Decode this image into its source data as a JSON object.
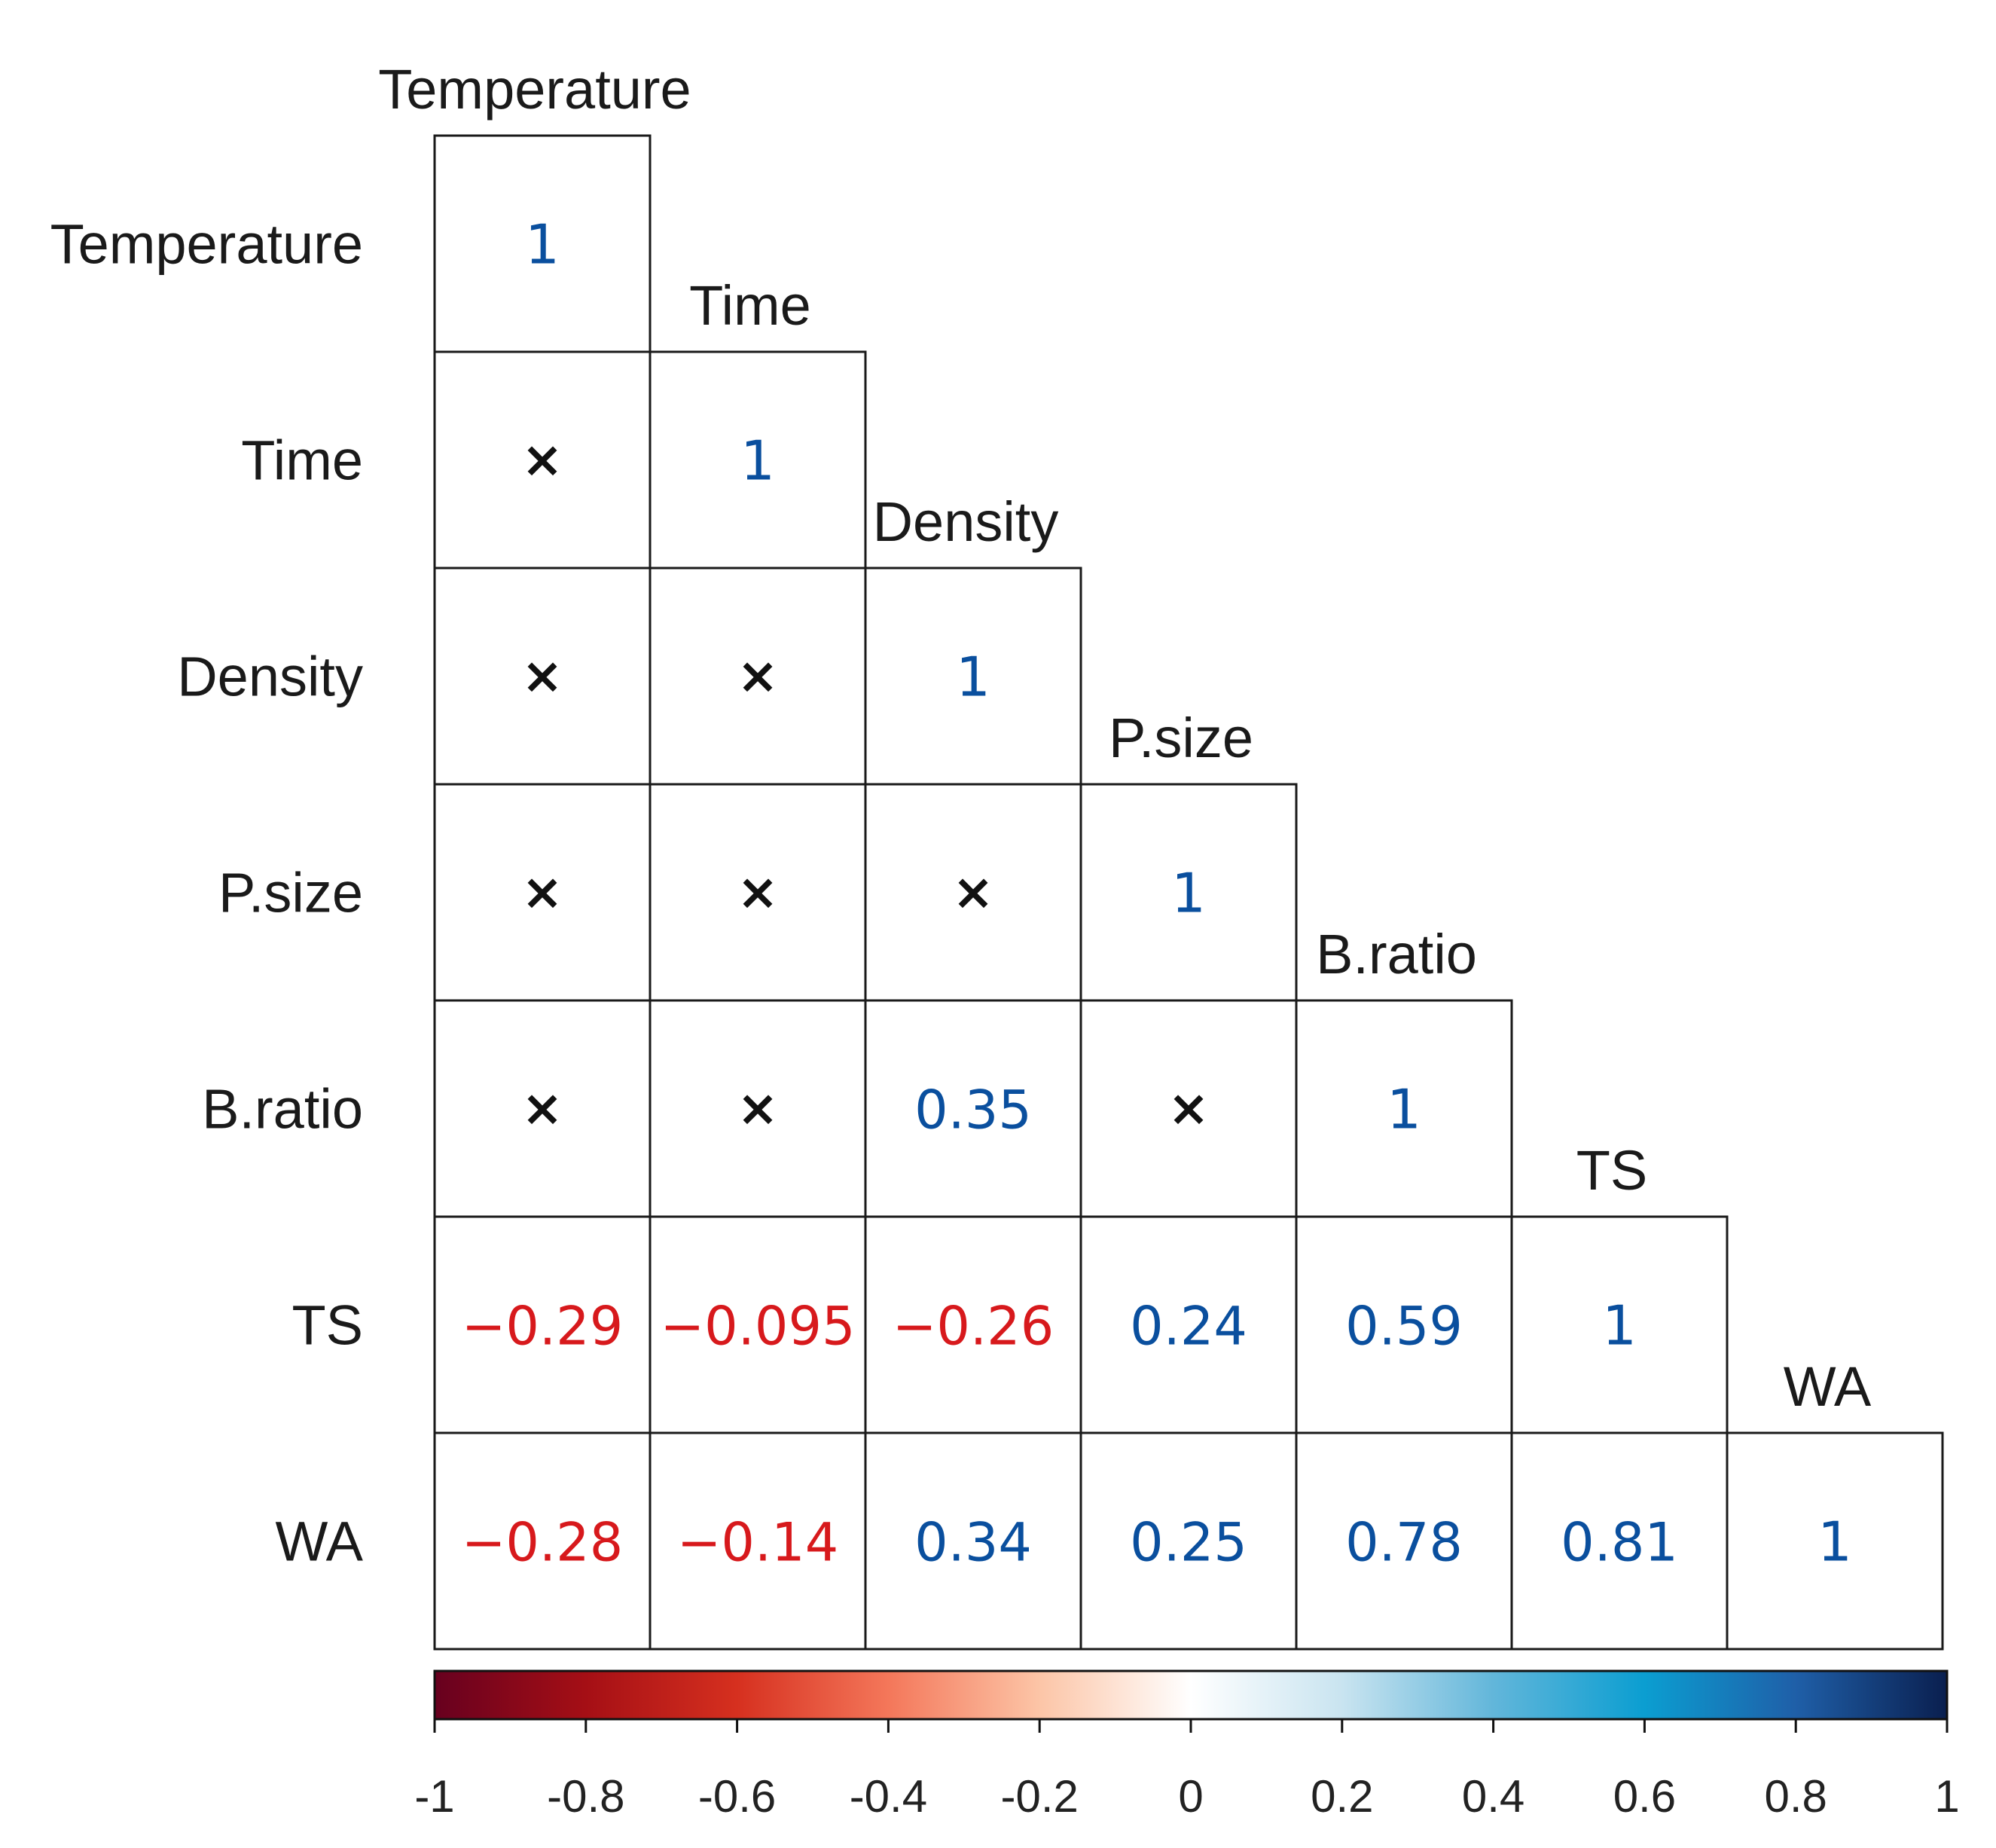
{
  "chart_data": {
    "type": "heatmap",
    "title": "",
    "variables": [
      "Temperature",
      "Time",
      "Density",
      "P.size",
      "B.ratio",
      "TS",
      "WA"
    ],
    "layout": "lower-triangle",
    "cells": [
      {
        "row": "Temperature",
        "col": "Temperature",
        "value": 1,
        "label": "1",
        "significant": true
      },
      {
        "row": "Time",
        "col": "Temperature",
        "value": null,
        "label": "×",
        "significant": false
      },
      {
        "row": "Time",
        "col": "Time",
        "value": 1,
        "label": "1",
        "significant": true
      },
      {
        "row": "Density",
        "col": "Temperature",
        "value": null,
        "label": "×",
        "significant": false
      },
      {
        "row": "Density",
        "col": "Time",
        "value": null,
        "label": "×",
        "significant": false
      },
      {
        "row": "Density",
        "col": "Density",
        "value": 1,
        "label": "1",
        "significant": true
      },
      {
        "row": "P.size",
        "col": "Temperature",
        "value": null,
        "label": "×",
        "significant": false
      },
      {
        "row": "P.size",
        "col": "Time",
        "value": null,
        "label": "×",
        "significant": false
      },
      {
        "row": "P.size",
        "col": "Density",
        "value": null,
        "label": "×",
        "significant": false
      },
      {
        "row": "P.size",
        "col": "P.size",
        "value": 1,
        "label": "1",
        "significant": true
      },
      {
        "row": "B.ratio",
        "col": "Temperature",
        "value": null,
        "label": "×",
        "significant": false
      },
      {
        "row": "B.ratio",
        "col": "Time",
        "value": null,
        "label": "×",
        "significant": false
      },
      {
        "row": "B.ratio",
        "col": "Density",
        "value": 0.35,
        "label": "0.35",
        "significant": true
      },
      {
        "row": "B.ratio",
        "col": "P.size",
        "value": null,
        "label": "×",
        "significant": false
      },
      {
        "row": "B.ratio",
        "col": "B.ratio",
        "value": 1,
        "label": "1",
        "significant": true
      },
      {
        "row": "TS",
        "col": "Temperature",
        "value": -0.29,
        "label": "-0.29",
        "significant": true
      },
      {
        "row": "TS",
        "col": "Time",
        "value": -0.095,
        "label": "-0.095",
        "significant": true
      },
      {
        "row": "TS",
        "col": "Density",
        "value": -0.26,
        "label": "-0.26",
        "significant": true
      },
      {
        "row": "TS",
        "col": "P.size",
        "value": 0.24,
        "label": "0.24",
        "significant": true
      },
      {
        "row": "TS",
        "col": "B.ratio",
        "value": 0.59,
        "label": "0.59",
        "significant": true
      },
      {
        "row": "TS",
        "col": "TS",
        "value": 1,
        "label": "1",
        "significant": true
      },
      {
        "row": "WA",
        "col": "Temperature",
        "value": -0.28,
        "label": "-0.28",
        "significant": true
      },
      {
        "row": "WA",
        "col": "Time",
        "value": -0.14,
        "label": "-0.14",
        "significant": true
      },
      {
        "row": "WA",
        "col": "Density",
        "value": 0.34,
        "label": "0.34",
        "significant": true
      },
      {
        "row": "WA",
        "col": "P.size",
        "value": 0.25,
        "label": "0.25",
        "significant": true
      },
      {
        "row": "WA",
        "col": "B.ratio",
        "value": 0.78,
        "label": "0.78",
        "significant": true
      },
      {
        "row": "WA",
        "col": "TS",
        "value": 0.81,
        "label": "0.81",
        "significant": true
      },
      {
        "row": "WA",
        "col": "WA",
        "value": 1,
        "label": "1",
        "significant": true
      }
    ],
    "colorbar": {
      "range": [
        -1,
        1
      ],
      "ticks": [
        -1,
        -0.8,
        -0.6,
        -0.4,
        -0.2,
        0,
        0.2,
        0.4,
        0.6,
        0.8,
        1
      ],
      "tick_labels": [
        "-1",
        "-0.8",
        "-0.6",
        "-0.4",
        "-0.2",
        "0",
        "0.2",
        "0.4",
        "0.6",
        "0.8",
        "1"
      ],
      "placement": "bottom"
    },
    "colors": {
      "negative_text": "#d7191c",
      "positive_text": "#0a4f9e",
      "cross": "#111111",
      "grid": "#1a1a1a",
      "scale": [
        "#67001f",
        "#d6604d",
        "#fddbc7",
        "#ffffff",
        "#d1e5f0",
        "#2c9bd0",
        "#053061"
      ]
    }
  }
}
